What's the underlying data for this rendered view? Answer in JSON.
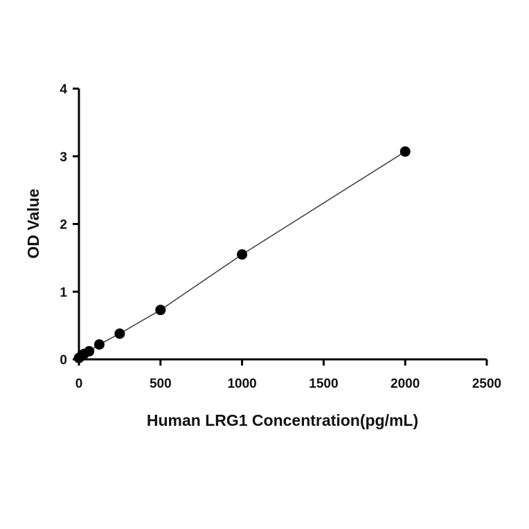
{
  "chart_data": {
    "type": "scatter",
    "title": "",
    "xlabel": "Human LRG1 Concentration(pg/mL)",
    "ylabel": "OD Value",
    "xlim": [
      0,
      2500
    ],
    "ylim": [
      0,
      4
    ],
    "xticks": [
      0,
      500,
      1000,
      1500,
      2000,
      2500
    ],
    "yticks": [
      0,
      1,
      2,
      3,
      4
    ],
    "grid": false,
    "legend": "none",
    "fit_line": true,
    "series": [
      {
        "x": [
          0,
          15.6,
          31.25,
          62.5,
          125,
          250,
          500,
          1000,
          2000
        ],
        "y": [
          0.02,
          0.05,
          0.08,
          0.12,
          0.22,
          0.38,
          0.73,
          1.55,
          3.07
        ]
      }
    ],
    "colors": {
      "points": "#000000",
      "line": "#444444",
      "axis": "#000000"
    }
  }
}
